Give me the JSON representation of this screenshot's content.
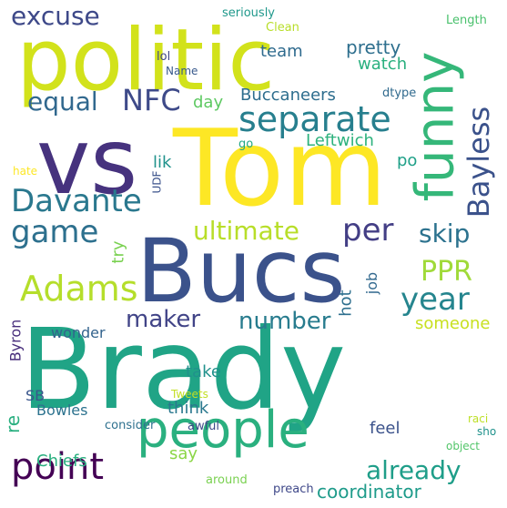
{
  "words": [
    {
      "text": "Brady",
      "color": "#20a486"
    },
    {
      "text": "Tom",
      "color": "#fde725"
    },
    {
      "text": "Bucs",
      "color": "#3b528b"
    },
    {
      "text": "vs",
      "color": "#46327e"
    },
    {
      "text": "politic",
      "color": "#d2e21b"
    },
    {
      "text": "funny",
      "color": "#35b779"
    },
    {
      "text": "people",
      "color": "#2ab07f"
    },
    {
      "text": "separate",
      "color": "#277f8e"
    },
    {
      "text": "Davante",
      "color": "#2a788e"
    },
    {
      "text": "Adams",
      "color": "#b5de2b"
    },
    {
      "text": "point",
      "color": "#440154"
    },
    {
      "text": "game",
      "color": "#2d708e"
    },
    {
      "text": "excuse",
      "color": "#3e4989"
    },
    {
      "text": "NFC",
      "color": "#3e4a89"
    },
    {
      "text": "equal",
      "color": "#31688e"
    },
    {
      "text": "ultimate",
      "color": "#b8de29"
    },
    {
      "text": "per",
      "color": "#433e85"
    },
    {
      "text": "skip",
      "color": "#2c728e"
    },
    {
      "text": "Bayless",
      "color": "#3b528b"
    },
    {
      "text": "year",
      "color": "#25858e"
    },
    {
      "text": "PPR",
      "color": "#a0da39"
    },
    {
      "text": "maker",
      "color": "#414487"
    },
    {
      "text": "number",
      "color": "#287c8e"
    },
    {
      "text": "already",
      "color": "#1f9e89"
    },
    {
      "text": "coordinator",
      "color": "#1e9b8a"
    },
    {
      "text": "Buccaneers",
      "color": "#2e6e8e"
    },
    {
      "text": "pretty",
      "color": "#2e6f8e"
    },
    {
      "text": "watch",
      "color": "#2ab07f"
    },
    {
      "text": "team",
      "color": "#2f6b8e"
    },
    {
      "text": "Leftwich",
      "color": "#2db27d"
    },
    {
      "text": "day",
      "color": "#5ec962"
    },
    {
      "text": "lik",
      "color": "#20928c"
    },
    {
      "text": "po",
      "color": "#1fa088"
    },
    {
      "text": "job",
      "color": "#31688e"
    },
    {
      "text": "hot",
      "color": "#2e6f8e"
    },
    {
      "text": "someone",
      "color": "#c8e020"
    },
    {
      "text": "take",
      "color": "#21918c"
    },
    {
      "text": "think",
      "color": "#2a788e"
    },
    {
      "text": "say",
      "color": "#8bd646"
    },
    {
      "text": "feel",
      "color": "#3b528b"
    },
    {
      "text": "Chiefs",
      "color": "#29af7f"
    },
    {
      "text": "Bowles",
      "color": "#2c728e"
    },
    {
      "text": "SB",
      "color": "#39568c"
    },
    {
      "text": "re",
      "color": "#29af7f"
    },
    {
      "text": "Byron",
      "color": "#472d7b"
    },
    {
      "text": "wonder",
      "color": "#33638d"
    },
    {
      "text": "try",
      "color": "#7ad151"
    },
    {
      "text": "seriously",
      "color": "#1f988b"
    },
    {
      "text": "Clean",
      "color": "#b8de29"
    },
    {
      "text": "Length",
      "color": "#4ac16d"
    },
    {
      "text": "lol",
      "color": "#3f4788"
    },
    {
      "text": "Name",
      "color": "#38598c"
    },
    {
      "text": "dtype",
      "color": "#306a8e"
    },
    {
      "text": "go",
      "color": "#22a785"
    },
    {
      "text": "hate",
      "color": "#fde725"
    },
    {
      "text": "UDF",
      "color": "#3b528b"
    },
    {
      "text": "Tweets",
      "color": "#c2df23"
    },
    {
      "text": "consider",
      "color": "#2d708e"
    },
    {
      "text": "awful",
      "color": "#3e4a89"
    },
    {
      "text": "around",
      "color": "#7ad151"
    },
    {
      "text": "preach",
      "color": "#3f4889"
    },
    {
      "text": "raci",
      "color": "#bddf26"
    },
    {
      "text": "sho",
      "color": "#20928c"
    },
    {
      "text": "object",
      "color": "#52c569"
    }
  ]
}
